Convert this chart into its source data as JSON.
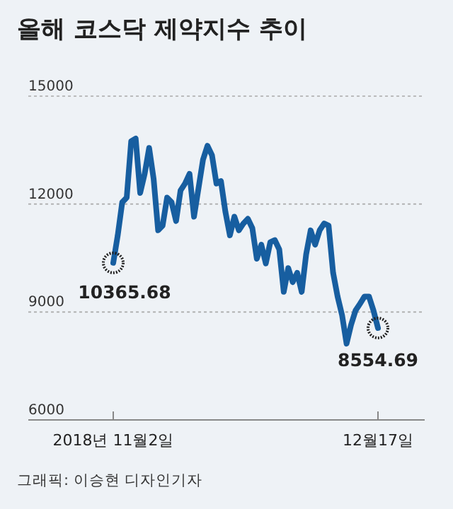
{
  "chart_data": {
    "type": "line",
    "title": "올해 코스닥 제약지수 추이",
    "categories": [
      "2018년 11월2일",
      null,
      null,
      null,
      null,
      null,
      null,
      null,
      null,
      null,
      null,
      null,
      null,
      null,
      null,
      null,
      null,
      null,
      null,
      null,
      null,
      null,
      null,
      null,
      null,
      null,
      null,
      null,
      null,
      null,
      null,
      null,
      null,
      null,
      null,
      null,
      null,
      null,
      null,
      null,
      null,
      null,
      null,
      null,
      null,
      null,
      null,
      null,
      null,
      null,
      null,
      null,
      null,
      null,
      null,
      null,
      null,
      null,
      null,
      "12월17일"
    ],
    "series": [
      {
        "color": "#175ea0",
        "values": [
          10365.68,
          11130,
          12050,
          12180,
          13750,
          13820,
          12310,
          12840,
          13560,
          12700,
          11270,
          11400,
          12180,
          12050,
          11530,
          12380,
          12570,
          12840,
          11650,
          12440,
          13230,
          13620,
          13360,
          12570,
          12640,
          11780,
          11130,
          11650,
          11270,
          11460,
          11590,
          11330,
          10480,
          10870,
          10350,
          10940,
          11000,
          10740,
          9560,
          10220,
          9830,
          10090,
          9560,
          10610,
          11270,
          10870,
          11270,
          11460,
          11400,
          10090,
          9430,
          8910,
          8120,
          8640,
          9040,
          9230,
          9430,
          9430,
          9040,
          8554.69
        ]
      }
    ],
    "ylim": [
      6000,
      15000
    ],
    "yticks": [
      6000,
      9000,
      12000,
      15000
    ],
    "grid": "y",
    "annotations": [
      {
        "text": "10365.68",
        "x": "2018년 11월2일",
        "y": 10365.68
      },
      {
        "text": "8554.69",
        "x": "12월17일",
        "y": 8554.69
      },
      "그래픽: 이승현 디자인기자"
    ]
  }
}
